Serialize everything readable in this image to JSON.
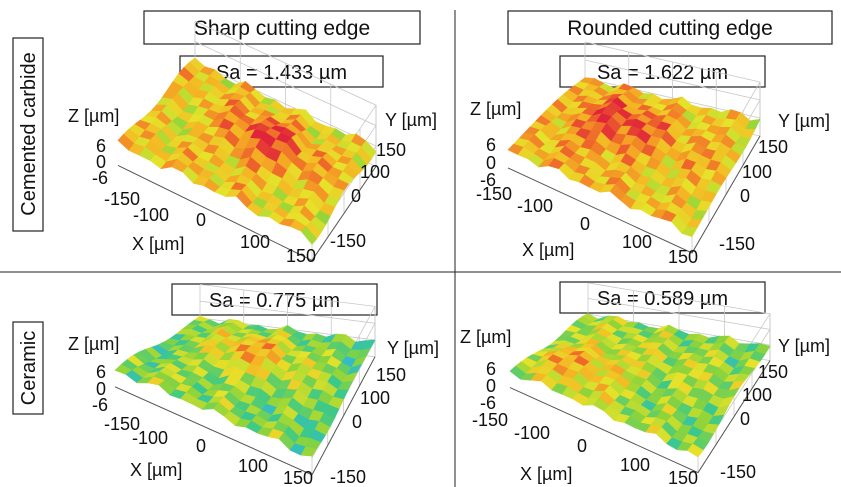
{
  "column_headers": [
    "Sharp cutting edge",
    "Rounded cutting edge"
  ],
  "row_labels": [
    "Cemented carbide",
    "Ceramic"
  ],
  "colors": {
    "colormap": [
      "#1f4fd6",
      "#2fb5e6",
      "#3cc98a",
      "#8fd43a",
      "#e6e22a",
      "#f5b324",
      "#ef6b2a",
      "#e0243a"
    ]
  },
  "chart_data": [
    {
      "type": "surface",
      "panel": "cemented-carbide-sharp",
      "title": "Sa = 1.433 µm",
      "sa_um": 1.433,
      "xlabel": "X [µm]",
      "ylabel": "Y [µm]",
      "zlabel": "Z [µm]",
      "x_ticks": [
        "-150",
        "-100",
        "0",
        "100",
        "150"
      ],
      "y_ticks": [
        "150",
        "100",
        "0",
        "-150"
      ],
      "z_ticks": [
        "6",
        "0",
        "-6"
      ],
      "xlim": [
        -150,
        150
      ],
      "ylim": [
        -150,
        150
      ],
      "zlim": [
        -6,
        6
      ]
    },
    {
      "type": "surface",
      "panel": "cemented-carbide-rounded",
      "title": "Sa = 1.622 µm",
      "sa_um": 1.622,
      "xlabel": "X [µm]",
      "ylabel": "Y [µm]",
      "zlabel": "Z [µm]",
      "x_ticks": [
        "-150",
        "-100",
        "0",
        "100",
        "150"
      ],
      "y_ticks": [
        "150",
        "100",
        "0",
        "-150"
      ],
      "z_ticks": [
        "6",
        "0",
        "-6"
      ],
      "xlim": [
        -150,
        150
      ],
      "ylim": [
        -150,
        150
      ],
      "zlim": [
        -6,
        6
      ]
    },
    {
      "type": "surface",
      "panel": "ceramic-sharp",
      "title": "Sa = 0.775 µm",
      "sa_um": 0.775,
      "xlabel": "X [µm]",
      "ylabel": "Y [µm]",
      "zlabel": "Z [µm]",
      "x_ticks": [
        "-150",
        "-100",
        "0",
        "100",
        "150"
      ],
      "y_ticks": [
        "150",
        "100",
        "0",
        "-150"
      ],
      "z_ticks": [
        "6",
        "0",
        "-6"
      ],
      "xlim": [
        -150,
        150
      ],
      "ylim": [
        -150,
        150
      ],
      "zlim": [
        -6,
        6
      ]
    },
    {
      "type": "surface",
      "panel": "ceramic-rounded",
      "title": "Sa = 0.589 µm",
      "sa_um": 0.589,
      "xlabel": "X [µm]",
      "ylabel": "Y [µm]",
      "zlabel": "Z [µm]",
      "x_ticks": [
        "-150",
        "-100",
        "0",
        "100",
        "150"
      ],
      "y_ticks": [
        "150",
        "100",
        "0",
        "-150"
      ],
      "z_ticks": [
        "6",
        "0",
        "-6"
      ],
      "xlim": [
        -150,
        150
      ],
      "ylim": [
        -150,
        150
      ],
      "zlim": [
        -6,
        6
      ]
    }
  ]
}
